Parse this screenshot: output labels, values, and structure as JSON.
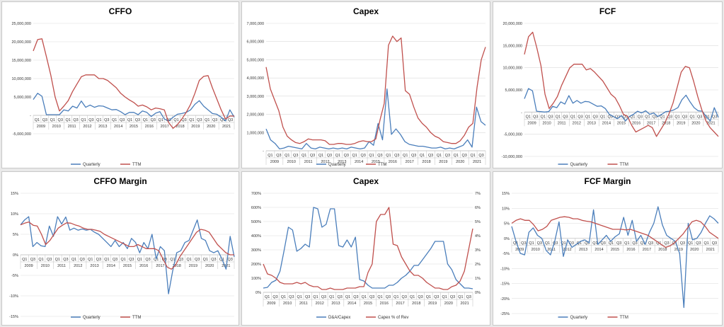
{
  "colors": {
    "blue": "#4a7ebb",
    "red": "#c0504d",
    "grid": "#d9d9d9",
    "axis": "#bfbfbf"
  },
  "chart_data": [
    {
      "id": "cffo",
      "type": "line",
      "title": "CFFO",
      "ylim": [
        -5000000,
        25000000
      ],
      "yticks": [
        "-5,000,000",
        "-",
        "5,000,000",
        "10,000,000",
        "15,000,000",
        "20,000,000",
        "25,000,000"
      ],
      "quarter_labels": [
        "Q1",
        "Q3",
        "Q1",
        "Q3",
        "Q1",
        "Q3",
        "Q1",
        "Q3",
        "Q1",
        "Q3",
        "Q1",
        "Q3",
        "Q1",
        "Q3",
        "Q1",
        "Q3",
        "Q1",
        "Q3",
        "Q1",
        "Q3",
        "Q1",
        "Q3",
        "Q1",
        "Q3",
        "Q1",
        "Q3"
      ],
      "years": [
        "2009",
        "2010",
        "2011",
        "2012",
        "2013",
        "2014",
        "2015",
        "2016",
        "2017",
        "2018",
        "2019",
        "2020",
        "2021"
      ],
      "series": [
        {
          "name": "Quarterly",
          "color": "blue",
          "values": [
            4300000,
            6000000,
            5200000,
            200000,
            200000,
            200000,
            200000,
            1500000,
            1200000,
            2500000,
            2000000,
            3900000,
            2200000,
            2800000,
            2200000,
            2600000,
            2500000,
            2000000,
            1500000,
            1600000,
            1000000,
            200000,
            800000,
            800000,
            200000,
            1200000,
            800000,
            -300000,
            600000,
            1000000,
            -1000000,
            -1500000,
            -500000,
            300000,
            500000,
            800000,
            1500000,
            3000000,
            4000000,
            2500000,
            1500000,
            500000,
            300000,
            -500000,
            -1500000,
            1500000,
            -500000
          ]
        },
        {
          "name": "TTM",
          "color": "red",
          "values": [
            17500000,
            20600000,
            20800000,
            16000000,
            11000000,
            5000000,
            1200000,
            2500000,
            4000000,
            6500000,
            8500000,
            10500000,
            11000000,
            11000000,
            11000000,
            10000000,
            10000000,
            9500000,
            8500000,
            7500000,
            6000000,
            5000000,
            4200000,
            3500000,
            2500000,
            2800000,
            2300000,
            1500000,
            2000000,
            1800000,
            1500000,
            -2000000,
            -3500000,
            -2500000,
            -1000000,
            800000,
            3000000,
            6000000,
            9500000,
            10600000,
            10800000,
            7500000,
            4500000,
            1500000,
            -1000000,
            -200000,
            -200000
          ]
        }
      ],
      "xlabel": "",
      "ylabel": ""
    },
    {
      "id": "capex",
      "type": "line",
      "title": "Capex",
      "ylim": [
        0,
        7000000
      ],
      "yticks": [
        "-",
        "1,000,000",
        "2,000,000",
        "3,000,000",
        "4,000,000",
        "5,000,000",
        "6,000,000",
        "7,000,000"
      ],
      "quarter_labels": [
        "Q1",
        "Q3",
        "Q1",
        "Q3",
        "Q1",
        "Q3",
        "Q1",
        "Q3",
        "Q1",
        "Q3",
        "Q1",
        "Q3",
        "Q1",
        "Q3",
        "Q1",
        "Q3",
        "Q1",
        "Q3",
        "Q1",
        "Q3",
        "Q1",
        "Q3",
        "Q1",
        "Q3",
        "Q1",
        "Q3"
      ],
      "years": [
        "2009",
        "2010",
        "2011",
        "2012",
        "2013",
        "2014",
        "2015",
        "2016",
        "2017",
        "2018",
        "2019",
        "2020",
        "2021"
      ],
      "series": [
        {
          "name": "Quarterly",
          "color": "blue",
          "values": [
            1200000,
            600000,
            400000,
            100000,
            150000,
            250000,
            200000,
            150000,
            100000,
            400000,
            150000,
            100000,
            200000,
            150000,
            100000,
            150000,
            100000,
            150000,
            100000,
            200000,
            150000,
            100000,
            150000,
            500000,
            300000,
            1500000,
            600000,
            3400000,
            900000,
            1200000,
            900000,
            500000,
            350000,
            300000,
            250000,
            250000,
            200000,
            150000,
            150000,
            200000,
            100000,
            150000,
            100000,
            200000,
            300000,
            600000,
            200000,
            2400000,
            1600000,
            1400000
          ]
        },
        {
          "name": "TTM",
          "color": "red",
          "values": [
            4600000,
            3400000,
            2800000,
            2200000,
            1300000,
            800000,
            600000,
            450000,
            400000,
            500000,
            650000,
            600000,
            600000,
            600000,
            550000,
            350000,
            350000,
            400000,
            400000,
            350000,
            350000,
            400000,
            500000,
            550000,
            500000,
            500000,
            650000,
            1700000,
            2600000,
            5800000,
            6300000,
            6000000,
            6200000,
            3300000,
            3100000,
            2400000,
            1800000,
            1500000,
            1300000,
            1000000,
            800000,
            700000,
            500000,
            450000,
            400000,
            400000,
            550000,
            850000,
            1300000,
            1500000,
            3500000,
            5000000,
            5700000
          ]
        }
      ],
      "xlabel": "",
      "ylabel": ""
    },
    {
      "id": "fcf",
      "type": "line",
      "title": "FCF",
      "ylim": [
        -10000000,
        20000000
      ],
      "yticks": [
        "-10,000,000",
        "-5,000,000",
        "-",
        "5,000,000",
        "10,000,000",
        "15,000,000",
        "20,000,000"
      ],
      "quarter_labels": [
        "Q1",
        "Q3",
        "Q1",
        "Q3",
        "Q1",
        "Q3",
        "Q1",
        "Q3",
        "Q1",
        "Q3",
        "Q1",
        "Q3",
        "Q1",
        "Q3",
        "Q1",
        "Q3",
        "Q1",
        "Q3",
        "Q1",
        "Q3",
        "Q1",
        "Q3",
        "Q1",
        "Q3",
        "Q1",
        "Q3"
      ],
      "years": [
        "2009",
        "2010",
        "2011",
        "2012",
        "2013",
        "2014",
        "2015",
        "2016",
        "2017",
        "2018",
        "2019",
        "2020",
        "2021"
      ],
      "series": [
        {
          "name": "Quarterly",
          "color": "blue",
          "values": [
            3000000,
            5300000,
            4800000,
            200000,
            100000,
            0,
            100000,
            1300000,
            1000000,
            2300000,
            1800000,
            3700000,
            2000000,
            2600000,
            2000000,
            2400000,
            2300000,
            1800000,
            1300000,
            1400000,
            800000,
            -500000,
            -1000000,
            -1500000,
            -800000,
            -2000000,
            -1000000,
            -500000,
            200000,
            -200000,
            300000,
            -500000,
            -200000,
            -1000000,
            -500000,
            100000,
            200000,
            500000,
            1000000,
            2800000,
            3800000,
            2300000,
            1000000,
            300000,
            200000,
            -1000000,
            -2000000,
            1000000,
            -1200000
          ]
        },
        {
          "name": "TTM",
          "color": "red",
          "values": [
            13000000,
            17000000,
            18000000,
            14500000,
            10500000,
            4000000,
            800000,
            2000000,
            3500000,
            6000000,
            8000000,
            10000000,
            10800000,
            10800000,
            10800000,
            9500000,
            9800000,
            9000000,
            8000000,
            7000000,
            5500000,
            4000000,
            3200000,
            1500000,
            -500000,
            -1000000,
            -3000000,
            -4500000,
            -4000000,
            -3500000,
            -3000000,
            -3500000,
            -5500000,
            -4000000,
            -2500000,
            -500000,
            2000000,
            5500000,
            9000000,
            10300000,
            10000000,
            7000000,
            3500000,
            500000,
            -2000000,
            -3500000,
            -4500000,
            -5500000
          ]
        }
      ],
      "xlabel": "",
      "ylabel": ""
    },
    {
      "id": "cffo-margin",
      "type": "line",
      "title": "CFFO Margin",
      "ylim": [
        -0.15,
        0.15
      ],
      "yticks": [
        "-15%",
        "-10%",
        "-5%",
        "0%",
        "5%",
        "10%",
        "15%"
      ],
      "quarter_labels": [
        "Q1",
        "Q3",
        "Q1",
        "Q3",
        "Q1",
        "Q3",
        "Q1",
        "Q3",
        "Q1",
        "Q3",
        "Q1",
        "Q3",
        "Q1",
        "Q3",
        "Q1",
        "Q3",
        "Q1",
        "Q3",
        "Q1",
        "Q3",
        "Q1",
        "Q3",
        "Q1",
        "Q3",
        "Q1",
        "Q3"
      ],
      "years": [
        "2009",
        "2010",
        "2011",
        "2012",
        "2013",
        "2014",
        "2015",
        "2016",
        "2017",
        "2018",
        "2019",
        "2020",
        "2021"
      ],
      "series": [
        {
          "name": "Quarterly",
          "color": "blue",
          "values": [
            0.073,
            0.085,
            0.093,
            0.02,
            0.03,
            0.022,
            0.02,
            0.07,
            0.045,
            0.093,
            0.075,
            0.092,
            0.06,
            0.065,
            0.06,
            0.063,
            0.06,
            0.062,
            0.055,
            0.05,
            0.04,
            0.03,
            0.02,
            0.035,
            0.02,
            0.03,
            0.015,
            0.04,
            0.03,
            0.005,
            0.03,
            0.015,
            0.05,
            -0.01,
            0.02,
            0.01,
            -0.095,
            -0.04,
            0.005,
            0.01,
            0.03,
            0.035,
            0.06,
            0.085,
            0.04,
            0.035,
            0.01,
            0.005,
            0.01,
            -0.01,
            -0.035,
            0.045,
            -0.005
          ]
        },
        {
          "name": "TTM",
          "color": "red",
          "values": [
            0.073,
            0.077,
            0.08,
            0.072,
            0.07,
            0.05,
            0.025,
            0.035,
            0.05,
            0.065,
            0.072,
            0.078,
            0.077,
            0.073,
            0.07,
            0.065,
            0.062,
            0.062,
            0.06,
            0.057,
            0.05,
            0.045,
            0.04,
            0.035,
            0.03,
            0.025,
            0.02,
            0.02,
            0.025,
            0.02,
            0.015,
            0.015,
            0.015,
            0.01,
            -0.01,
            -0.03,
            -0.035,
            -0.025,
            -0.005,
            0.01,
            0.025,
            0.04,
            0.055,
            0.062,
            0.06,
            0.055,
            0.04,
            0.025,
            0.015,
            0.005,
            0.0,
            0.0
          ]
        }
      ],
      "xlabel": "",
      "ylabel": ""
    },
    {
      "id": "capex-ratio",
      "type": "line",
      "title": "Capex",
      "ylim": [
        0,
        7
      ],
      "yticks": [
        "0%",
        "100%",
        "200%",
        "300%",
        "400%",
        "500%",
        "600%",
        "700%"
      ],
      "y2lim": [
        0,
        0.07
      ],
      "y2ticks": [
        "0%",
        "1%",
        "2%",
        "3%",
        "4%",
        "5%",
        "6%",
        "7%"
      ],
      "quarter_labels": [
        "Q1",
        "Q3",
        "Q1",
        "Q3",
        "Q1",
        "Q3",
        "Q1",
        "Q3",
        "Q1",
        "Q3",
        "Q1",
        "Q3",
        "Q1",
        "Q3",
        "Q1",
        "Q3",
        "Q1",
        "Q3",
        "Q1",
        "Q3",
        "Q1",
        "Q3",
        "Q1",
        "Q3",
        "Q1",
        "Q3"
      ],
      "years": [
        "2009",
        "2010",
        "2011",
        "2012",
        "2013",
        "2014",
        "2015",
        "2016",
        "2017",
        "2018",
        "2019",
        "2020",
        "2021"
      ],
      "series": [
        {
          "name": "D&A/Capex",
          "color": "blue",
          "axis": "left",
          "values": [
            0.3,
            0.35,
            0.7,
            0.85,
            1.5,
            3.0,
            4.6,
            4.4,
            2.9,
            3.1,
            3.4,
            3.2,
            6.0,
            5.9,
            4.6,
            4.8,
            5.9,
            5.9,
            3.3,
            3.2,
            3.7,
            3.2,
            3.9,
            0.9,
            0.8,
            0.5,
            0.3,
            0.3,
            0.3,
            0.3,
            0.5,
            0.5,
            0.7,
            1.0,
            1.2,
            1.5,
            1.9,
            1.9,
            2.3,
            2.7,
            3.1,
            3.6,
            3.6,
            3.6,
            2.0,
            1.6,
            0.9,
            0.6,
            0.3,
            0.3,
            0.25
          ]
        },
        {
          "name": "Capex % of Rev",
          "color": "red",
          "axis": "right",
          "values": [
            0.02,
            0.013,
            0.012,
            0.01,
            0.007,
            0.006,
            0.006,
            0.006,
            0.007,
            0.006,
            0.007,
            0.005,
            0.004,
            0.004,
            0.002,
            0.002,
            0.003,
            0.002,
            0.002,
            0.002,
            0.003,
            0.003,
            0.003,
            0.004,
            0.004,
            0.014,
            0.02,
            0.05,
            0.055,
            0.055,
            0.06,
            0.034,
            0.033,
            0.025,
            0.02,
            0.015,
            0.012,
            0.012,
            0.01,
            0.007,
            0.005,
            0.003,
            0.003,
            0.002,
            0.002,
            0.004,
            0.005,
            0.008,
            0.015,
            0.03,
            0.045
          ]
        }
      ],
      "xlabel": "",
      "ylabel": ""
    },
    {
      "id": "fcf-margin",
      "type": "line",
      "title": "FCF Margin",
      "ylim": [
        -0.25,
        0.15
      ],
      "yticks": [
        "-25%",
        "-20%",
        "-15%",
        "-10%",
        "-5%",
        "0%",
        "5%",
        "10%",
        "15%"
      ],
      "quarter_labels": [
        "Q1",
        "Q3",
        "Q1",
        "Q3",
        "Q1",
        "Q3",
        "Q1",
        "Q3",
        "Q1",
        "Q3",
        "Q1",
        "Q3",
        "Q1",
        "Q3",
        "Q1",
        "Q3",
        "Q1",
        "Q3",
        "Q1",
        "Q3",
        "Q1",
        "Q3",
        "Q1",
        "Q3",
        "Q1",
        "Q3"
      ],
      "years": [
        "2009",
        "2010",
        "2011",
        "2012",
        "2013",
        "2014",
        "2015",
        "2016",
        "2017",
        "2018",
        "2019",
        "2020",
        "2021"
      ],
      "series": [
        {
          "name": "Quarterly",
          "color": "blue",
          "values": [
            0.04,
            -0.01,
            -0.05,
            -0.055,
            0.02,
            0.035,
            0.01,
            0.0,
            -0.04,
            -0.055,
            -0.01,
            0.055,
            -0.06,
            -0.005,
            -0.03,
            -0.02,
            -0.01,
            -0.005,
            -0.015,
            0.095,
            -0.02,
            -0.005,
            0.01,
            -0.01,
            0.005,
            0.015,
            0.07,
            0.01,
            0.06,
            -0.01,
            0.01,
            -0.02,
            0.02,
            0.05,
            0.105,
            0.045,
            0.01,
            0.0,
            -0.01,
            -0.05,
            -0.23,
            0.05,
            -0.005,
            0.0,
            0.02,
            0.05,
            0.075,
            0.065,
            0.05
          ]
        },
        {
          "name": "TTM",
          "color": "red",
          "values": [
            0.05,
            0.06,
            0.065,
            0.06,
            0.06,
            0.045,
            0.025,
            0.03,
            0.04,
            0.06,
            0.065,
            0.07,
            0.072,
            0.07,
            0.065,
            0.065,
            0.06,
            0.057,
            0.055,
            0.05,
            0.045,
            0.04,
            0.035,
            0.03,
            0.03,
            0.03,
            0.028,
            0.03,
            0.025,
            0.02,
            0.015,
            0.01,
            0.0,
            -0.01,
            -0.02,
            -0.03,
            -0.025,
            -0.015,
            0.0,
            0.015,
            0.035,
            0.055,
            0.06,
            0.055,
            0.04,
            0.02,
            0.01,
            0.0
          ]
        }
      ],
      "xlabel": "",
      "ylabel": ""
    }
  ]
}
